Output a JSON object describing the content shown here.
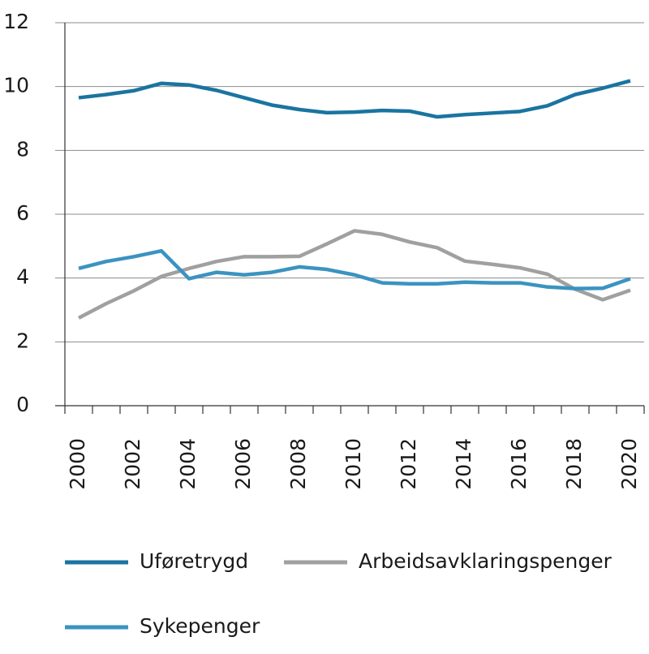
{
  "chart_data": {
    "type": "line",
    "x": [
      2000,
      2001,
      2002,
      2003,
      2004,
      2005,
      2006,
      2007,
      2008,
      2009,
      2010,
      2011,
      2012,
      2013,
      2014,
      2015,
      2016,
      2017,
      2018,
      2019,
      2020
    ],
    "xlim": [
      1999.5,
      2020.5
    ],
    "xticks": [
      2000,
      2002,
      2004,
      2006,
      2008,
      2010,
      2012,
      2014,
      2016,
      2018,
      2020
    ],
    "ylim": [
      0,
      12
    ],
    "yticks": [
      0,
      2,
      4,
      6,
      8,
      10,
      12
    ],
    "grid": true,
    "series": [
      {
        "name": "Uføretrygd",
        "color": "#1a74a0",
        "values": [
          9.65,
          9.75,
          9.87,
          10.1,
          10.05,
          9.88,
          9.65,
          9.42,
          9.28,
          9.18,
          9.2,
          9.25,
          9.23,
          9.05,
          9.12,
          9.17,
          9.22,
          9.4,
          9.75,
          9.95,
          10.18
        ]
      },
      {
        "name": "Arbeidsavklaringspenger",
        "color": "#a0a0a0",
        "values": [
          2.75,
          3.2,
          3.6,
          4.05,
          4.3,
          4.52,
          4.67,
          4.67,
          4.68,
          5.07,
          5.48,
          5.37,
          5.13,
          4.95,
          4.53,
          4.43,
          4.32,
          4.12,
          3.65,
          3.32,
          3.62
        ]
      },
      {
        "name": "Sykepenger",
        "color": "#3b93c0",
        "values": [
          4.3,
          4.52,
          4.67,
          4.85,
          3.98,
          4.18,
          4.1,
          4.18,
          4.35,
          4.27,
          4.1,
          3.85,
          3.82,
          3.82,
          3.87,
          3.85,
          3.85,
          3.72,
          3.67,
          3.68,
          3.98
        ]
      }
    ]
  }
}
